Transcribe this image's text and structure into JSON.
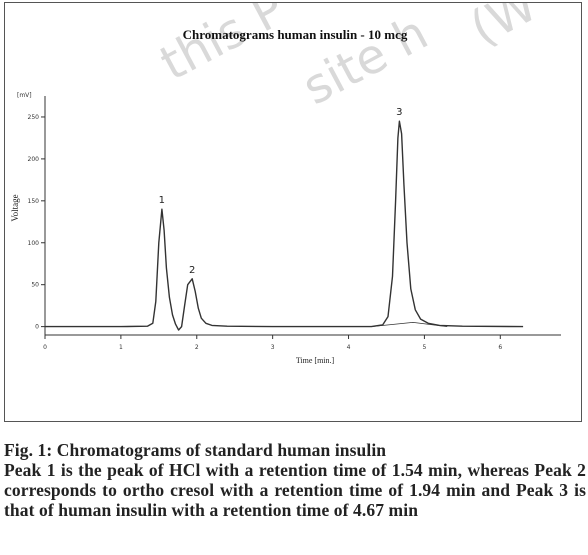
{
  "chart_data": {
    "type": "line",
    "title": "Chromatograms human insulin - 10 mcg",
    "xlabel": "Time [min.]",
    "ylabel": "Voltage",
    "y_unit_label": "[mV]",
    "xlim": [
      0,
      6.8
    ],
    "ylim": [
      -10,
      275
    ],
    "x_ticks": [
      0,
      1,
      2,
      3,
      4,
      5,
      6
    ],
    "y_ticks": [
      0,
      50,
      100,
      150,
      200,
      250
    ],
    "grid": false,
    "series": [
      {
        "points": [
          [
            0.0,
            0
          ],
          [
            1.0,
            0
          ],
          [
            1.35,
            0.5
          ],
          [
            1.42,
            4
          ],
          [
            1.46,
            30
          ],
          [
            1.5,
            100
          ],
          [
            1.54,
            140
          ],
          [
            1.57,
            115
          ],
          [
            1.6,
            70
          ],
          [
            1.64,
            35
          ],
          [
            1.68,
            14
          ],
          [
            1.72,
            3
          ],
          [
            1.76,
            -4
          ],
          [
            1.8,
            0
          ],
          [
            1.84,
            25
          ],
          [
            1.88,
            50
          ],
          [
            1.94,
            57
          ],
          [
            1.98,
            42
          ],
          [
            2.02,
            22
          ],
          [
            2.06,
            10
          ],
          [
            2.12,
            4
          ],
          [
            2.2,
            1.5
          ],
          [
            2.4,
            0.5
          ],
          [
            3.0,
            0
          ],
          [
            4.3,
            0
          ],
          [
            4.45,
            2
          ],
          [
            4.52,
            12
          ],
          [
            4.58,
            60
          ],
          [
            4.62,
            150
          ],
          [
            4.65,
            225
          ],
          [
            4.67,
            245
          ],
          [
            4.7,
            230
          ],
          [
            4.73,
            170
          ],
          [
            4.77,
            100
          ],
          [
            4.82,
            45
          ],
          [
            4.88,
            20
          ],
          [
            4.95,
            9
          ],
          [
            5.05,
            4
          ],
          [
            5.2,
            1.5
          ],
          [
            5.5,
            0.5
          ],
          [
            6.3,
            0
          ]
        ]
      }
    ],
    "baseline_segment": [
      [
        4.3,
        0
      ],
      [
        4.85,
        5
      ],
      [
        5.3,
        0
      ]
    ],
    "annotations": [
      {
        "text": "1",
        "x": 1.54,
        "y": 140
      },
      {
        "text": "2",
        "x": 1.94,
        "y": 57
      },
      {
        "text": "3",
        "x": 4.67,
        "y": 245
      }
    ],
    "colors": {
      "trace": "#333333",
      "axis": "#333333"
    }
  },
  "watermark": {
    "text_1": "this P",
    "text_2": "site h",
    "text_3": "(W"
  },
  "caption": {
    "title": "Fig. 1: Chromatograms of standard human insulin",
    "body": "Peak 1 is the peak of HCl with a retention time of 1.54 min, whereas Peak 2 corresponds to ortho cresol with a retention time of 1.94 min and Peak 3 is that of human insulin with a retention time of 4.67 min"
  }
}
